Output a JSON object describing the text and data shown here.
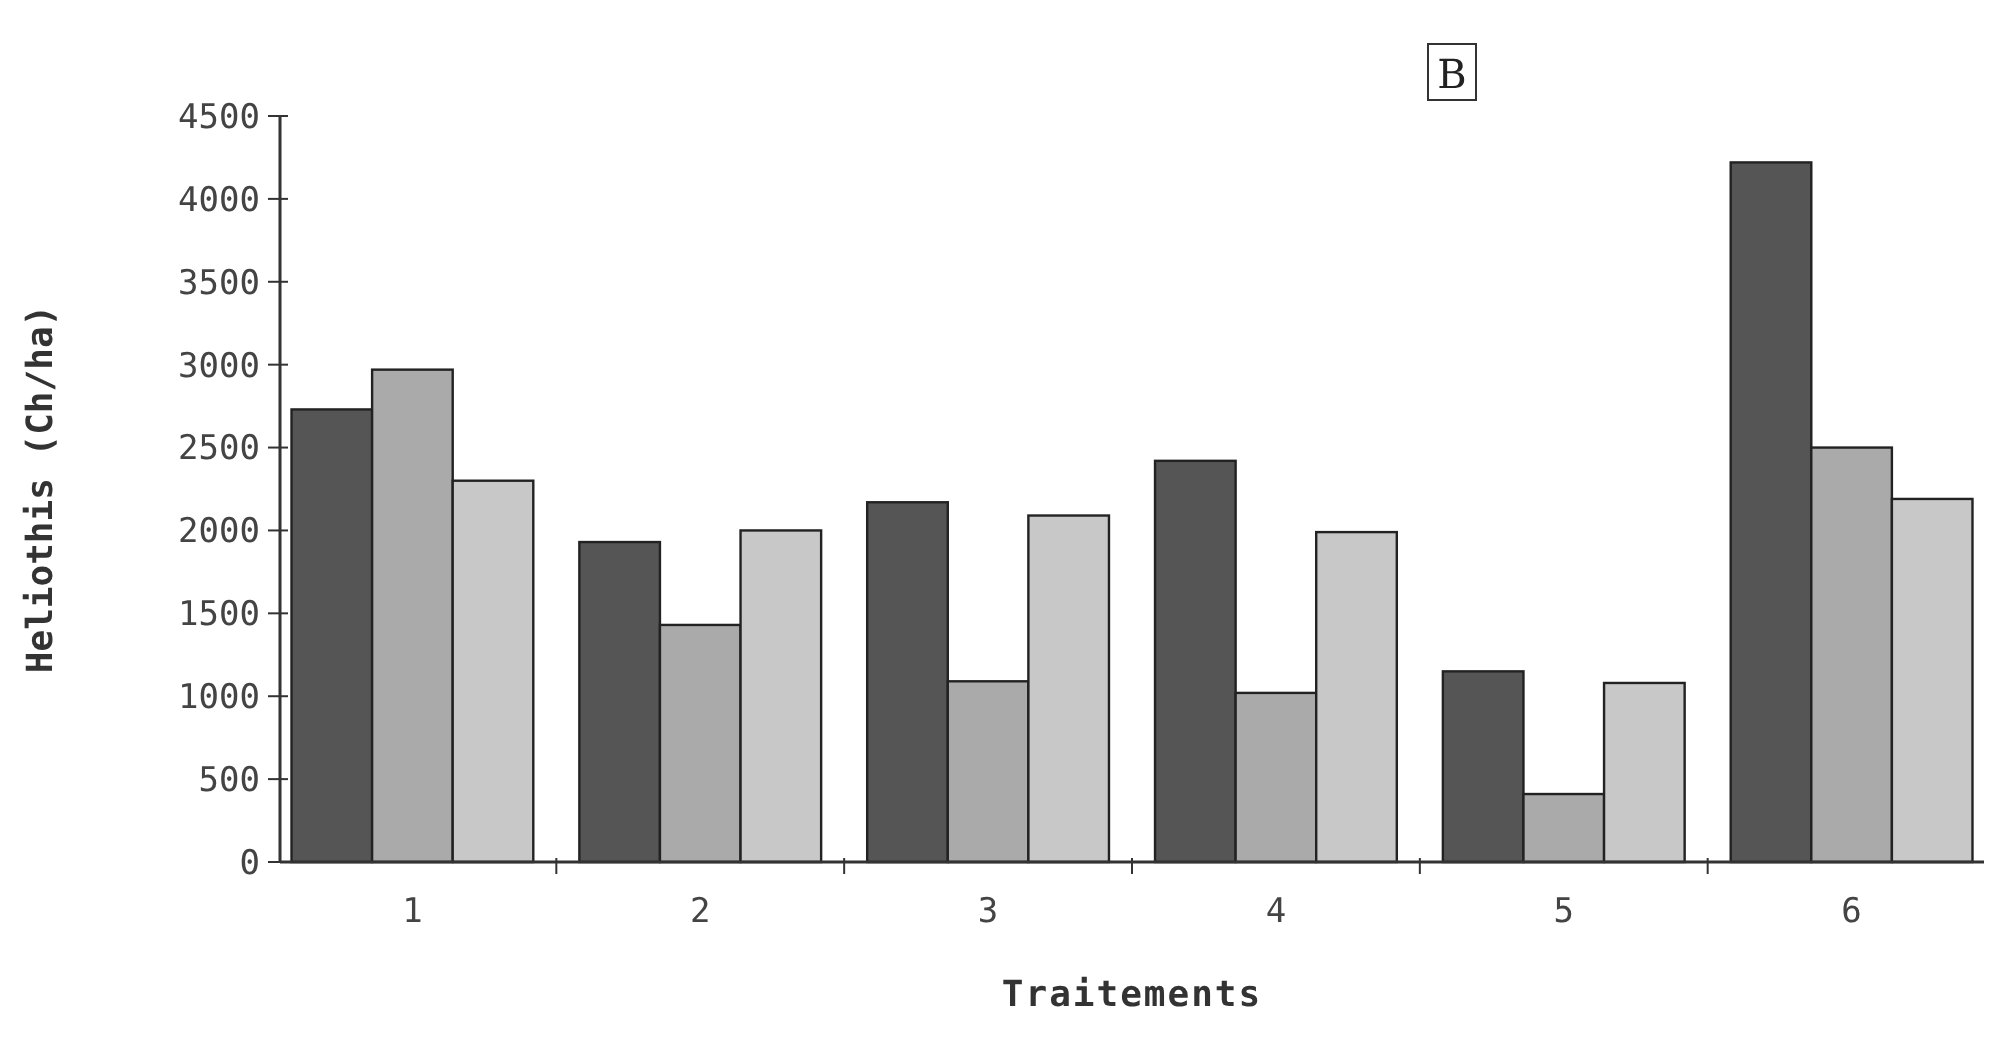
{
  "chart_data": {
    "type": "bar",
    "title": "B",
    "xlabel": "Traitements",
    "ylabel": "Heliothis (Ch/ha)",
    "categories": [
      "1",
      "2",
      "3",
      "4",
      "5",
      "6"
    ],
    "series": [
      {
        "color": "#555555",
        "values": [
          2730,
          1930,
          2170,
          2420,
          1150,
          4220
        ]
      },
      {
        "color": "#aaaaaa",
        "values": [
          2970,
          1430,
          1090,
          1020,
          410,
          2500
        ]
      },
      {
        "color": "#c8c8c8",
        "values": [
          2300,
          2000,
          2090,
          1990,
          1080,
          2190
        ]
      }
    ],
    "ylim": [
      0,
      4500
    ],
    "yticks": [
      0,
      500,
      1000,
      1500,
      2000,
      2500,
      3000,
      3500,
      4000,
      4500
    ],
    "grid": false
  }
}
